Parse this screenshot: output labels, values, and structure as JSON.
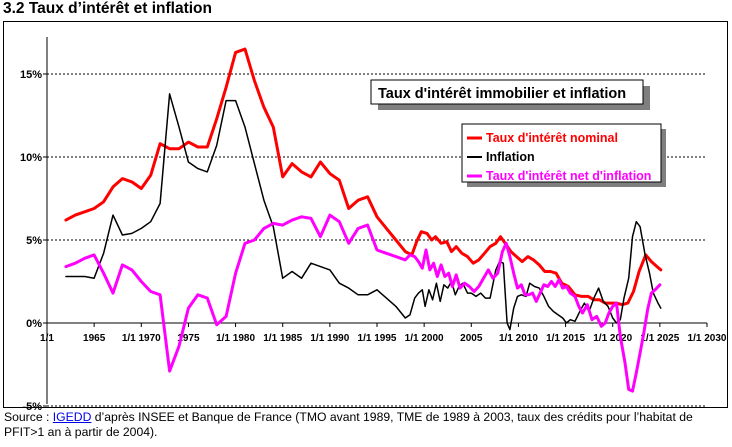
{
  "page": {
    "title": "3.2 Taux d’intérêt et inflation"
  },
  "source": {
    "prefix": "Source : ",
    "link_text": "IGEDD",
    "text": " d’après INSEE et  Banque de France (TMO avant 1989, TME de 1989 à 2003, taux des crédits pour l’habitat de PFIT>1 an à partir de 2004)."
  },
  "colors": {
    "nominal": "#ff0000",
    "inflation": "#000000",
    "net": "#ff00ff"
  },
  "chart_data": {
    "type": "line",
    "title": "Taux d'intérêt immobilier et inflation",
    "xlabel": "",
    "ylabel": "",
    "xlim": [
      1960,
      2030
    ],
    "ylim": [
      -0.05,
      0.175
    ],
    "y_ticks": [
      {
        "value": 0.15,
        "label": "15%"
      },
      {
        "value": 0.1,
        "label": "10%"
      },
      {
        "value": 0.05,
        "label": "5%"
      },
      {
        "value": 0.0,
        "label": "0%"
      },
      {
        "value": -0.05,
        "label": "-5%"
      }
    ],
    "x_ticks": [
      {
        "value": 1960,
        "label": "1/1"
      },
      {
        "value": 1965,
        "label": "1965"
      },
      {
        "value": 1970,
        "label": "1/1 1970"
      },
      {
        "value": 1975,
        "label": "1975"
      },
      {
        "value": 1980,
        "label": "1/1 1980"
      },
      {
        "value": 1985,
        "label": "1/1 1985"
      },
      {
        "value": 1990,
        "label": "1/1 1990"
      },
      {
        "value": 1995,
        "label": "1/1 1995"
      },
      {
        "value": 2000,
        "label": "1/1 2000"
      },
      {
        "value": 2005,
        "label": "2005"
      },
      {
        "value": 2010,
        "label": "1/1 2010"
      },
      {
        "value": 2015,
        "label": "1/1 2015"
      },
      {
        "value": 2020,
        "label": "1/1 2020"
      },
      {
        "value": 2025,
        "label": "1/1 2025"
      },
      {
        "value": 2030,
        "label": "1/1 2030"
      }
    ],
    "legend_position": "right",
    "series": [
      {
        "name": "Taux d'intérêt nominal",
        "color": "#ff0000",
        "points": [
          [
            1962,
            0.062
          ],
          [
            1963,
            0.065
          ],
          [
            1964,
            0.067
          ],
          [
            1965,
            0.069
          ],
          [
            1966,
            0.073
          ],
          [
            1967,
            0.082
          ],
          [
            1968,
            0.087
          ],
          [
            1969,
            0.085
          ],
          [
            1970,
            0.081
          ],
          [
            1971,
            0.089
          ],
          [
            1972,
            0.108
          ],
          [
            1973,
            0.105
          ],
          [
            1974,
            0.105
          ],
          [
            1975,
            0.109
          ],
          [
            1976,
            0.106
          ],
          [
            1977,
            0.106
          ],
          [
            1978,
            0.123
          ],
          [
            1979,
            0.142
          ],
          [
            1980,
            0.163
          ],
          [
            1981,
            0.165
          ],
          [
            1982,
            0.146
          ],
          [
            1983,
            0.13
          ],
          [
            1984,
            0.118
          ],
          [
            1985,
            0.088
          ],
          [
            1986,
            0.096
          ],
          [
            1987,
            0.091
          ],
          [
            1988,
            0.088
          ],
          [
            1989,
            0.097
          ],
          [
            1990,
            0.09
          ],
          [
            1991,
            0.086
          ],
          [
            1992,
            0.069
          ],
          [
            1993,
            0.074
          ],
          [
            1994,
            0.076
          ],
          [
            1995,
            0.064
          ],
          [
            1996,
            0.057
          ],
          [
            1997,
            0.05
          ],
          [
            1998,
            0.043
          ],
          [
            1998.7,
            0.041
          ],
          [
            1999.2,
            0.049
          ],
          [
            1999.7,
            0.055
          ],
          [
            2000.3,
            0.054
          ],
          [
            2000.8,
            0.05
          ],
          [
            2001.2,
            0.052
          ],
          [
            2001.8,
            0.048
          ],
          [
            2002.4,
            0.049
          ],
          [
            2002.9,
            0.043
          ],
          [
            2003.4,
            0.046
          ],
          [
            2004,
            0.042
          ],
          [
            2004.6,
            0.04
          ],
          [
            2005.2,
            0.036
          ],
          [
            2005.8,
            0.038
          ],
          [
            2006.4,
            0.042
          ],
          [
            2007,
            0.046
          ],
          [
            2007.6,
            0.048
          ],
          [
            2008.1,
            0.052
          ],
          [
            2008.6,
            0.048
          ],
          [
            2009.2,
            0.043
          ],
          [
            2009.8,
            0.04
          ],
          [
            2010.4,
            0.037
          ],
          [
            2011,
            0.04
          ],
          [
            2011.6,
            0.038
          ],
          [
            2012.2,
            0.035
          ],
          [
            2012.8,
            0.031
          ],
          [
            2013.4,
            0.031
          ],
          [
            2014,
            0.03
          ],
          [
            2014.6,
            0.024
          ],
          [
            2015.3,
            0.022
          ],
          [
            2016,
            0.017
          ],
          [
            2016.7,
            0.016
          ],
          [
            2017.4,
            0.016
          ],
          [
            2018,
            0.014
          ],
          [
            2018.6,
            0.014
          ],
          [
            2019.2,
            0.012
          ],
          [
            2019.8,
            0.012
          ],
          [
            2020.4,
            0.012
          ],
          [
            2021,
            0.011
          ],
          [
            2021.6,
            0.012
          ],
          [
            2022.2,
            0.019
          ],
          [
            2022.8,
            0.031
          ],
          [
            2023.5,
            0.041
          ],
          [
            2024.1,
            0.037
          ],
          [
            2024.7,
            0.034
          ],
          [
            2025.1,
            0.032
          ]
        ]
      },
      {
        "name": "Inflation",
        "color": "#000000",
        "points": [
          [
            1962,
            0.028
          ],
          [
            1963,
            0.028
          ],
          [
            1964,
            0.028
          ],
          [
            1965,
            0.027
          ],
          [
            1966,
            0.042
          ],
          [
            1967,
            0.065
          ],
          [
            1968,
            0.053
          ],
          [
            1969,
            0.054
          ],
          [
            1970,
            0.057
          ],
          [
            1971,
            0.061
          ],
          [
            1972,
            0.072
          ],
          [
            1973,
            0.138
          ],
          [
            1974,
            0.118
          ],
          [
            1975,
            0.097
          ],
          [
            1976,
            0.093
          ],
          [
            1977,
            0.091
          ],
          [
            1978,
            0.107
          ],
          [
            1979,
            0.134
          ],
          [
            1980,
            0.134
          ],
          [
            1981,
            0.118
          ],
          [
            1982,
            0.096
          ],
          [
            1983,
            0.074
          ],
          [
            1984,
            0.058
          ],
          [
            1985,
            0.027
          ],
          [
            1986,
            0.031
          ],
          [
            1987,
            0.027
          ],
          [
            1988,
            0.036
          ],
          [
            1989,
            0.034
          ],
          [
            1990,
            0.032
          ],
          [
            1991,
            0.024
          ],
          [
            1992,
            0.021
          ],
          [
            1993,
            0.017
          ],
          [
            1994,
            0.017
          ],
          [
            1995,
            0.02
          ],
          [
            1996,
            0.015
          ],
          [
            1997,
            0.01
          ],
          [
            1998,
            0.003
          ],
          [
            1998.5,
            0.005
          ],
          [
            1999,
            0.015
          ],
          [
            1999.4,
            0.018
          ],
          [
            1999.8,
            0.02
          ],
          [
            2000.1,
            0.01
          ],
          [
            2000.5,
            0.02
          ],
          [
            2000.9,
            0.014
          ],
          [
            2001.3,
            0.024
          ],
          [
            2001.7,
            0.013
          ],
          [
            2002.1,
            0.023
          ],
          [
            2002.5,
            0.021
          ],
          [
            2002.9,
            0.025
          ],
          [
            2003.3,
            0.017
          ],
          [
            2003.7,
            0.022
          ],
          [
            2004.1,
            0.024
          ],
          [
            2004.6,
            0.018
          ],
          [
            2005,
            0.018
          ],
          [
            2005.5,
            0.016
          ],
          [
            2006,
            0.018
          ],
          [
            2006.5,
            0.015
          ],
          [
            2007,
            0.015
          ],
          [
            2007.6,
            0.032
          ],
          [
            2008,
            0.037
          ],
          [
            2008.4,
            0.036
          ],
          [
            2008.8,
            0.0
          ],
          [
            2009.1,
            -0.004
          ],
          [
            2009.5,
            0.009
          ],
          [
            2009.9,
            0.016
          ],
          [
            2010.3,
            0.017
          ],
          [
            2010.8,
            0.016
          ],
          [
            2011.2,
            0.024
          ],
          [
            2011.7,
            0.022
          ],
          [
            2012.2,
            0.021
          ],
          [
            2012.7,
            0.016
          ],
          [
            2013.2,
            0.01
          ],
          [
            2013.7,
            0.007
          ],
          [
            2014.2,
            0.005
          ],
          [
            2014.7,
            0.003
          ],
          [
            2015.1,
            0.0
          ],
          [
            2015.5,
            0.002
          ],
          [
            2016,
            0.001
          ],
          [
            2016.6,
            0.008
          ],
          [
            2017,
            0.012
          ],
          [
            2017.5,
            0.007
          ],
          [
            2018,
            0.015
          ],
          [
            2018.5,
            0.021
          ],
          [
            2019,
            0.013
          ],
          [
            2019.5,
            0.01
          ],
          [
            2020,
            0.003
          ],
          [
            2020.4,
            0.0
          ],
          [
            2020.8,
            0.002
          ],
          [
            2021.2,
            0.015
          ],
          [
            2021.7,
            0.027
          ],
          [
            2022.1,
            0.052
          ],
          [
            2022.5,
            0.061
          ],
          [
            2022.9,
            0.058
          ],
          [
            2023.4,
            0.042
          ],
          [
            2023.9,
            0.03
          ],
          [
            2024.3,
            0.018
          ],
          [
            2024.8,
            0.012
          ],
          [
            2025.1,
            0.009
          ]
        ]
      },
      {
        "name": "Taux d'intérêt net d'inflation",
        "color": "#ff00ff",
        "points": [
          [
            1962,
            0.034
          ],
          [
            1963,
            0.036
          ],
          [
            1964,
            0.039
          ],
          [
            1965,
            0.041
          ],
          [
            1966,
            0.03
          ],
          [
            1967,
            0.018
          ],
          [
            1968,
            0.035
          ],
          [
            1969,
            0.032
          ],
          [
            1970,
            0.025
          ],
          [
            1971,
            0.019
          ],
          [
            1972,
            0.017
          ],
          [
            1973,
            -0.029
          ],
          [
            1974,
            -0.014
          ],
          [
            1975,
            0.009
          ],
          [
            1976,
            0.017
          ],
          [
            1977,
            0.015
          ],
          [
            1978,
            -0.001
          ],
          [
            1979,
            0.004
          ],
          [
            1980,
            0.03
          ],
          [
            1981,
            0.048
          ],
          [
            1982,
            0.05
          ],
          [
            1983,
            0.057
          ],
          [
            1984,
            0.06
          ],
          [
            1985,
            0.059
          ],
          [
            1986,
            0.062
          ],
          [
            1987,
            0.064
          ],
          [
            1988,
            0.063
          ],
          [
            1989,
            0.052
          ],
          [
            1990,
            0.065
          ],
          [
            1991,
            0.061
          ],
          [
            1992,
            0.048
          ],
          [
            1993,
            0.057
          ],
          [
            1994,
            0.059
          ],
          [
            1995,
            0.044
          ],
          [
            1996,
            0.042
          ],
          [
            1997,
            0.04
          ],
          [
            1998,
            0.038
          ],
          [
            1998.5,
            0.041
          ],
          [
            1999,
            0.04
          ],
          [
            1999.4,
            0.037
          ],
          [
            1999.8,
            0.033
          ],
          [
            2000.2,
            0.044
          ],
          [
            2000.6,
            0.032
          ],
          [
            2001,
            0.036
          ],
          [
            2001.4,
            0.028
          ],
          [
            2001.8,
            0.035
          ],
          [
            2002.2,
            0.028
          ],
          [
            2002.6,
            0.03
          ],
          [
            2003,
            0.022
          ],
          [
            2003.4,
            0.029
          ],
          [
            2003.8,
            0.021
          ],
          [
            2004.3,
            0.024
          ],
          [
            2004.8,
            0.022
          ],
          [
            2005.3,
            0.019
          ],
          [
            2005.8,
            0.022
          ],
          [
            2006.3,
            0.027
          ],
          [
            2006.8,
            0.032
          ],
          [
            2007.3,
            0.027
          ],
          [
            2007.8,
            0.03
          ],
          [
            2008.3,
            0.043
          ],
          [
            2008.7,
            0.048
          ],
          [
            2009.1,
            0.04
          ],
          [
            2009.5,
            0.03
          ],
          [
            2009.9,
            0.021
          ],
          [
            2010.3,
            0.023
          ],
          [
            2010.7,
            0.017
          ],
          [
            2011.1,
            0.017
          ],
          [
            2011.5,
            0.018
          ],
          [
            2011.9,
            0.013
          ],
          [
            2012.3,
            0.018
          ],
          [
            2012.7,
            0.023
          ],
          [
            2013.1,
            0.022
          ],
          [
            2013.5,
            0.025
          ],
          [
            2013.9,
            0.022
          ],
          [
            2014.3,
            0.026
          ],
          [
            2014.7,
            0.021
          ],
          [
            2015.1,
            0.022
          ],
          [
            2015.5,
            0.018
          ],
          [
            2016,
            0.016
          ],
          [
            2016.4,
            0.01
          ],
          [
            2016.8,
            0.006
          ],
          [
            2017.3,
            0.011
          ],
          [
            2017.8,
            0.002
          ],
          [
            2018.3,
            0.004
          ],
          [
            2018.8,
            -0.002
          ],
          [
            2019.2,
            0.0
          ],
          [
            2019.6,
            0.006
          ],
          [
            2020,
            0.01
          ],
          [
            2020.4,
            0.012
          ],
          [
            2020.8,
            -0.008
          ],
          [
            2021.3,
            -0.024
          ],
          [
            2021.7,
            -0.04
          ],
          [
            2022.1,
            -0.041
          ],
          [
            2022.5,
            -0.03
          ],
          [
            2022.9,
            -0.018
          ],
          [
            2023.3,
            -0.006
          ],
          [
            2023.7,
            0.008
          ],
          [
            2024.1,
            0.018
          ],
          [
            2024.5,
            0.02
          ],
          [
            2025,
            0.023
          ]
        ]
      }
    ]
  }
}
